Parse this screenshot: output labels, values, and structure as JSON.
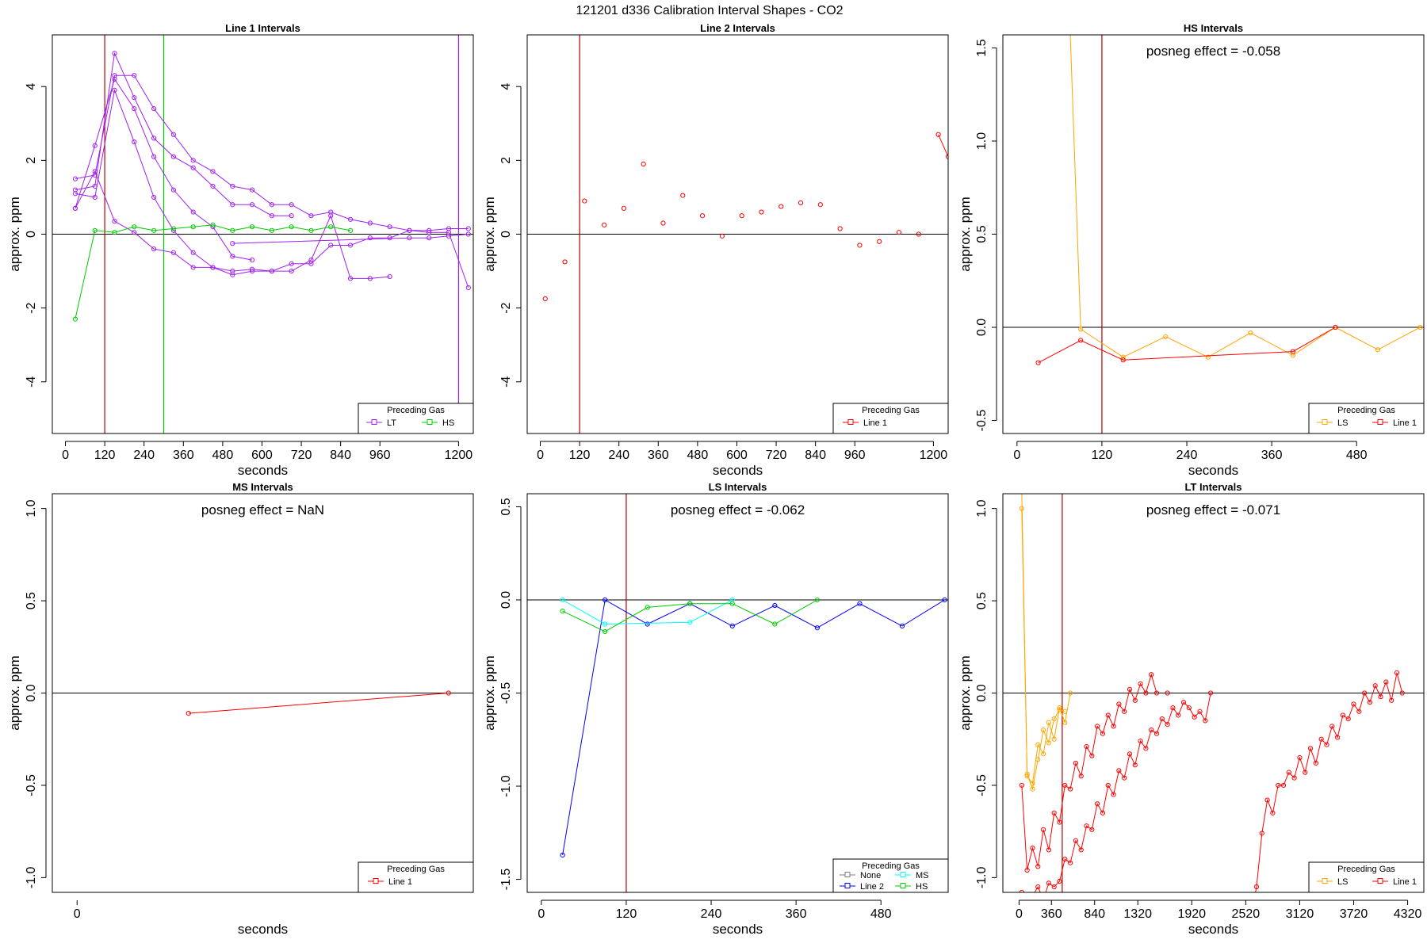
{
  "figure": {
    "title": "121201  d336   Calibration Interval Shapes - CO2"
  },
  "colors": {
    "LT": "#A020F0",
    "HS": "#00CC00",
    "Line 1": "#FF0000",
    "Line 2": "#0000FF",
    "LS": "#FFA500",
    "MS": "#00FFFF",
    "None": "#808080",
    "vline_red": "#B20000",
    "vline_green": "#00CC00",
    "vline_purple": "#A020F0"
  },
  "chart_data": [
    {
      "type": "line",
      "title": "Line 1 Intervals",
      "xlabel": "seconds",
      "ylabel": "approx. ppm",
      "xlim": [
        -40,
        1245
      ],
      "ylim": [
        -5.4,
        5.4
      ],
      "xticks": [
        0,
        120,
        240,
        360,
        480,
        600,
        720,
        840,
        960,
        1200
      ],
      "xtick_labels": [
        "0",
        "120",
        "240",
        "360",
        "480",
        "600",
        "720",
        "840",
        "960",
        "1200"
      ],
      "yticks": [
        -4,
        -2,
        0,
        2,
        4
      ],
      "ytick_labels": [
        "-4",
        "-2",
        "0",
        "2",
        "4"
      ],
      "vlines": [
        {
          "x": 120,
          "color": "vline_red"
        },
        {
          "x": 300,
          "color": "vline_green"
        },
        {
          "x": 1200,
          "color": "vline_purple"
        }
      ],
      "legend": {
        "title": "Preceding Gas",
        "position": "bottom-right",
        "entries": [
          "LT",
          "HS"
        ]
      },
      "series": [
        {
          "group": "LT",
          "x": [
            30,
            90,
            150,
            210,
            270,
            330,
            390,
            450,
            510,
            570,
            630,
            690,
            750,
            810,
            870,
            930,
            990,
            1050,
            1110,
            1170,
            1230
          ],
          "y": [
            1.5,
            1.6,
            4.3,
            4.3,
            3.4,
            2.7,
            2.0,
            1.7,
            1.3,
            1.2,
            0.8,
            0.8,
            0.5,
            0.6,
            0.4,
            0.3,
            0.2,
            0.1,
            0.1,
            0.15,
            0.15
          ]
        },
        {
          "group": "LT",
          "x": [
            30,
            90,
            150,
            210,
            270,
            330,
            390,
            450,
            510,
            570,
            630,
            690
          ],
          "y": [
            1.2,
            1.3,
            4.9,
            3.7,
            2.6,
            2.1,
            1.8,
            1.3,
            0.8,
            0.8,
            0.5,
            0.5
          ]
        },
        {
          "group": "LT",
          "x": [
            30,
            90,
            150,
            210,
            270,
            330,
            390,
            450,
            510,
            570
          ],
          "y": [
            0.7,
            2.4,
            4.2,
            3.4,
            2.1,
            1.2,
            0.6,
            0.2,
            -0.6,
            -0.7
          ]
        },
        {
          "group": "LT",
          "x": [
            30,
            90,
            150,
            210,
            270,
            330,
            390,
            450,
            510,
            570,
            630,
            690,
            750,
            810,
            870,
            930,
            990
          ],
          "y": [
            1.1,
            1.0,
            3.9,
            2.5,
            1.0,
            0.1,
            -0.5,
            -0.9,
            -1.1,
            -1.0,
            -1.0,
            -1.0,
            -0.7,
            0.5,
            -1.2,
            -1.2,
            -1.15
          ]
        },
        {
          "group": "LT",
          "x": [
            30,
            90,
            150,
            210,
            270,
            330,
            390,
            450,
            510,
            570,
            630,
            690,
            750,
            810,
            870,
            930,
            990,
            1050,
            1110,
            1170,
            1230
          ],
          "y": [
            0.7,
            1.7,
            0.35,
            0.05,
            -0.4,
            -0.5,
            -0.9,
            -0.9,
            -1.0,
            -0.95,
            -1.0,
            -0.8,
            -0.8,
            -0.3,
            -0.3,
            -0.1,
            -0.1,
            0.1,
            0.05,
            0.05,
            -1.45
          ]
        },
        {
          "group": "LT",
          "x": [
            510,
            1050,
            1110,
            1170,
            1230
          ],
          "y": [
            -0.25,
            -0.1,
            -0.1,
            -0.05,
            0.0
          ]
        },
        {
          "group": "HS",
          "x": [
            30,
            90,
            150,
            210,
            270,
            330,
            390,
            450,
            510,
            570,
            630,
            690,
            750,
            810,
            870
          ],
          "y": [
            -2.3,
            0.1,
            0.05,
            0.2,
            0.1,
            0.15,
            0.2,
            0.25,
            0.1,
            0.2,
            0.1,
            0.2,
            0.1,
            0.2,
            0.1
          ]
        }
      ]
    },
    {
      "type": "line",
      "title": "Line 2 Intervals",
      "xlabel": "seconds",
      "ylabel": "approx. ppm",
      "xlim": [
        -40,
        1245
      ],
      "ylim": [
        -5.4,
        5.4
      ],
      "xticks": [
        0,
        120,
        240,
        360,
        480,
        600,
        720,
        840,
        960,
        1200
      ],
      "xtick_labels": [
        "0",
        "120",
        "240",
        "360",
        "480",
        "600",
        "720",
        "840",
        "960",
        "1200"
      ],
      "yticks": [
        -4,
        -2,
        0,
        2,
        4
      ],
      "ytick_labels": [
        "-4",
        "-2",
        "0",
        "2",
        "4"
      ],
      "vlines": [
        {
          "x": 120,
          "color": "vline_red"
        }
      ],
      "legend": {
        "title": "Preceding Gas",
        "position": "bottom-right",
        "entries": [
          "Line 1"
        ]
      },
      "series": [
        {
          "group": "Line 1",
          "x": [
            15,
            45,
            75,
            105,
            135,
            165,
            195,
            225,
            255,
            285,
            315,
            345,
            375,
            405,
            435,
            465,
            495,
            525,
            555,
            585,
            615,
            645,
            675,
            705,
            735,
            765,
            795,
            825,
            855,
            885,
            915,
            945,
            975,
            1005,
            1035,
            1065,
            1095,
            1125,
            1155,
            1185,
            1215,
            1245
          ],
          "y": [
            -1.75,
            null,
            -0.75,
            null,
            0.9,
            null,
            0.25,
            null,
            0.7,
            null,
            1.9,
            null,
            0.3,
            null,
            1.05,
            null,
            0.5,
            null,
            -0.05,
            null,
            0.5,
            null,
            0.6,
            null,
            0.75,
            null,
            0.85,
            null,
            0.8,
            null,
            0.15,
            null,
            -0.3,
            null,
            -0.2,
            null,
            0.05,
            null,
            0.0,
            null,
            2.7,
            2.1
          ]
        }
      ]
    },
    {
      "type": "line",
      "title": "HS Intervals",
      "annotation": "posneg effect = -0.058",
      "xlabel": "seconds",
      "ylabel": "approx. ppm",
      "xlim": [
        -20,
        575
      ],
      "ylim": [
        -0.57,
        1.57
      ],
      "xticks": [
        0,
        120,
        240,
        360,
        480
      ],
      "xtick_labels": [
        "0",
        "120",
        "240",
        "360",
        "480"
      ],
      "yticks": [
        -0.5,
        0.0,
        0.5,
        1.0,
        1.5
      ],
      "ytick_labels": [
        "-0.5",
        "0.0",
        "0.5",
        "1.0",
        "1.5"
      ],
      "vlines": [
        {
          "x": 120,
          "color": "vline_red"
        }
      ],
      "legend": {
        "title": "Preceding Gas",
        "position": "bottom-right",
        "entries": [
          "LS",
          "Line 1"
        ]
      },
      "series": [
        {
          "group": "LS",
          "x": [
            75,
            90,
            150,
            210,
            270,
            330,
            390,
            450,
            510,
            570
          ],
          "y": [
            1.6,
            -0.01,
            -0.16,
            -0.05,
            -0.16,
            -0.03,
            -0.15,
            0.0,
            -0.12,
            0.0
          ]
        },
        {
          "group": "Line 1",
          "x": [
            30,
            90,
            150,
            390,
            450
          ],
          "y": [
            -0.19,
            -0.07,
            -0.175,
            -0.13,
            0.0
          ]
        }
      ]
    },
    {
      "type": "line",
      "title": "MS Intervals",
      "annotation": "posneg effect = NaN",
      "xlabel": "seconds",
      "ylabel": "approx. ppm",
      "xlim": [
        -0.1,
        1.6
      ],
      "ylim": [
        -1.08,
        1.08
      ],
      "xticks": [
        0
      ],
      "xtick_labels": [
        "0"
      ],
      "yticks": [
        -1.0,
        -0.5,
        0.0,
        0.5,
        1.0
      ],
      "ytick_labels": [
        "-1.0",
        "-0.5",
        "0.0",
        "0.5",
        "1.0"
      ],
      "vlines": [],
      "legend": {
        "title": "Preceding Gas",
        "position": "bottom-right",
        "entries": [
          "Line 1"
        ]
      },
      "series": [
        {
          "group": "Line 1",
          "x": [
            0.45,
            1.5
          ],
          "y": [
            -0.11,
            0.0
          ]
        }
      ]
    },
    {
      "type": "line",
      "title": "LS Intervals",
      "annotation": "posneg effect = -0.062",
      "xlabel": "seconds",
      "ylabel": "approx. ppm",
      "xlim": [
        -20,
        575
      ],
      "ylim": [
        -1.57,
        0.57
      ],
      "xticks": [
        0,
        120,
        240,
        360,
        480
      ],
      "xtick_labels": [
        "0",
        "120",
        "240",
        "360",
        "480"
      ],
      "yticks": [
        -1.5,
        -1.0,
        -0.5,
        0.0,
        0.5
      ],
      "ytick_labels": [
        "-1.5",
        "-1.0",
        "-0.5",
        "0.0",
        "0.5"
      ],
      "vlines": [
        {
          "x": 120,
          "color": "vline_red"
        }
      ],
      "legend": {
        "title": "Preceding Gas",
        "position": "bottom-right",
        "entries": [
          "None",
          "MS",
          "Line 2",
          "HS"
        ]
      },
      "series": [
        {
          "group": "Line 2",
          "x": [
            30,
            90,
            150,
            210,
            270,
            330,
            390,
            450,
            510,
            570
          ],
          "y": [
            -1.37,
            0.0,
            -0.13,
            -0.02,
            -0.14,
            -0.03,
            -0.15,
            -0.02,
            -0.14,
            0.0
          ]
        },
        {
          "group": "MS",
          "x": [
            30,
            90,
            210,
            270
          ],
          "y": [
            0.0,
            -0.13,
            -0.12,
            0.0
          ]
        },
        {
          "group": "HS",
          "x": [
            30,
            90,
            150,
            210,
            270,
            330,
            390
          ],
          "y": [
            -0.06,
            -0.17,
            -0.04,
            -0.02,
            -0.02,
            -0.13,
            0.0
          ]
        }
      ]
    },
    {
      "type": "line",
      "title": "LT Intervals",
      "annotation": "posneg effect = -0.071",
      "xlabel": "seconds",
      "ylabel": "approx. ppm",
      "xlim": [
        -180,
        4500
      ],
      "ylim": [
        -1.08,
        1.08
      ],
      "xticks": [
        0,
        360,
        840,
        1320,
        1920,
        2520,
        3120,
        3720,
        4320
      ],
      "xtick_labels": [
        "0",
        "360",
        "840",
        "1320",
        "1920",
        "2520",
        "3120",
        "3720",
        "4320"
      ],
      "yticks": [
        -1.0,
        -0.5,
        0.0,
        0.5,
        1.0
      ],
      "ytick_labels": [
        "-1.0",
        "-0.5",
        "0.0",
        "0.5",
        "1.0"
      ],
      "vlines": [
        {
          "x": 480,
          "color": "vline_red"
        }
      ],
      "legend": {
        "title": "Preceding Gas",
        "position": "bottom-right",
        "entries": [
          "LS",
          "Line 1"
        ]
      },
      "series": [
        {
          "group": "LS",
          "x": [
            30,
            90,
            150,
            210,
            270,
            330,
            390,
            450,
            510,
            570
          ],
          "y": [
            1.1,
            -0.45,
            -0.49,
            -0.28,
            -0.33,
            -0.16,
            -0.25,
            -0.08,
            -0.16,
            0.0
          ]
        },
        {
          "group": "LS",
          "x": [
            30,
            90,
            150,
            210,
            270,
            330,
            390,
            450,
            510
          ],
          "y": [
            1.0,
            -0.44,
            -0.52,
            -0.36,
            -0.2,
            -0.27,
            -0.14,
            -0.09,
            -0.1
          ]
        },
        {
          "group": "Line 1",
          "x": [
            30,
            90,
            150,
            210,
            270,
            330,
            390,
            450,
            510,
            570,
            630,
            690,
            750,
            810,
            870,
            930,
            990,
            1050,
            1110,
            1170,
            1230,
            1290,
            1350,
            1410,
            1470,
            1530,
            1590,
            1650
          ],
          "y": [
            -0.5,
            -0.96,
            -0.84,
            -0.94,
            -0.74,
            -0.85,
            -0.65,
            -0.7,
            -0.5,
            -0.52,
            -0.38,
            -0.45,
            -0.29,
            -0.34,
            -0.18,
            -0.22,
            -0.12,
            -0.18,
            -0.06,
            -0.1,
            0.02,
            -0.04,
            0.05,
            0.0,
            0.1,
            0.0,
            null,
            0.0
          ]
        },
        {
          "group": "Line 1",
          "x": [
            30,
            90,
            150,
            210,
            270,
            330,
            390,
            450,
            510,
            570,
            630,
            690,
            750,
            810,
            870,
            930,
            990,
            1050,
            1110,
            1170,
            1230,
            1290,
            1350,
            1410,
            1470,
            1530,
            1590,
            1650,
            1710,
            1770,
            1830,
            1890,
            1950,
            2010,
            2070,
            2130
          ],
          "y": [
            -1.08,
            -1.15,
            -1.1,
            -1.05,
            -1.12,
            -1.03,
            -1.05,
            -1.02,
            -0.9,
            -0.92,
            -0.8,
            -0.85,
            -0.72,
            -0.74,
            -0.6,
            -0.65,
            -0.5,
            -0.55,
            -0.42,
            -0.46,
            -0.33,
            -0.39,
            -0.26,
            -0.3,
            -0.2,
            -0.22,
            -0.14,
            -0.17,
            -0.08,
            -0.12,
            -0.05,
            -0.08,
            -0.13,
            -0.1,
            -0.15,
            0.0
          ]
        },
        {
          "group": "Line 1",
          "x": [
            2580,
            2640,
            2700,
            2760,
            2820,
            2880,
            2940,
            3000,
            3060,
            3120,
            3180,
            3240,
            3300,
            3360,
            3420,
            3480,
            3540,
            3600,
            3660,
            3720,
            3780,
            3840,
            3900,
            3960,
            4020,
            4080,
            4140,
            4200,
            4260,
            4320,
            4380
          ],
          "y": [
            -1.2,
            -1.05,
            -0.76,
            -0.58,
            -0.65,
            -0.5,
            -0.5,
            -0.43,
            -0.46,
            -0.35,
            -0.43,
            -0.3,
            -0.38,
            -0.25,
            -0.28,
            -0.18,
            -0.24,
            -0.12,
            -0.14,
            -0.06,
            -0.1,
            0.0,
            -0.05,
            0.04,
            -0.02,
            0.06,
            -0.04,
            0.11,
            0.0,
            null,
            null
          ]
        }
      ]
    }
  ]
}
